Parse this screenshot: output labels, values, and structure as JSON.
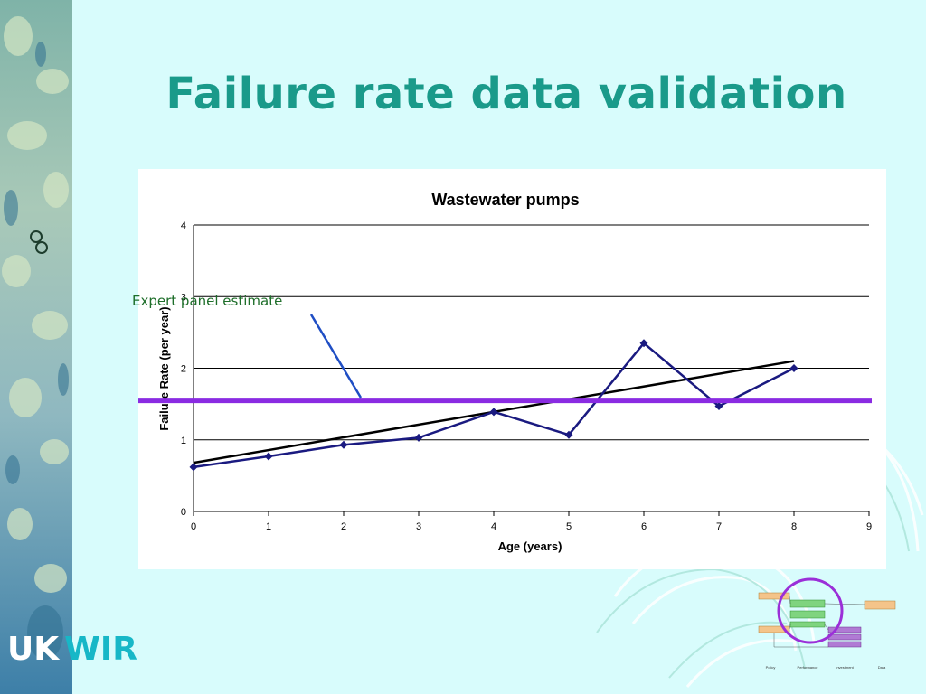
{
  "slide": {
    "title": "Failure rate data validation",
    "annotation": "Expert panel estimate",
    "logo_part1": "UK",
    "logo_part2": "WIR",
    "title_color": "#1a9a8a",
    "background_color": "#d8fcfc"
  },
  "diagram_labels": [
    "Policy",
    "Performance",
    "Investment",
    "Data"
  ],
  "chart_data": {
    "type": "line",
    "title": "Wastewater pumps",
    "xlabel": "Age (years)",
    "ylabel": "Failure Rate (per year)",
    "xlim": [
      0,
      9
    ],
    "ylim": [
      0,
      4
    ],
    "x_ticks": [
      "0",
      "1",
      "2",
      "3",
      "4",
      "5",
      "6",
      "7",
      "8",
      "9"
    ],
    "y_ticks": [
      "0",
      "1",
      "2",
      "3",
      "4"
    ],
    "grid": "horizontal",
    "series": [
      {
        "kind": "observed",
        "color": "#1a1a80",
        "marker": "diamond",
        "x": [
          0,
          1,
          2,
          3,
          4,
          5,
          6,
          7,
          8
        ],
        "y": [
          0.62,
          0.77,
          0.93,
          1.03,
          1.39,
          1.07,
          2.35,
          1.47,
          2.0
        ]
      },
      {
        "kind": "trend",
        "color": "#000000",
        "x": [
          0,
          8
        ],
        "y": [
          0.68,
          2.1
        ]
      },
      {
        "kind": "expert-panel-estimate",
        "color": "#8a2be2",
        "y": 1.55
      }
    ]
  }
}
